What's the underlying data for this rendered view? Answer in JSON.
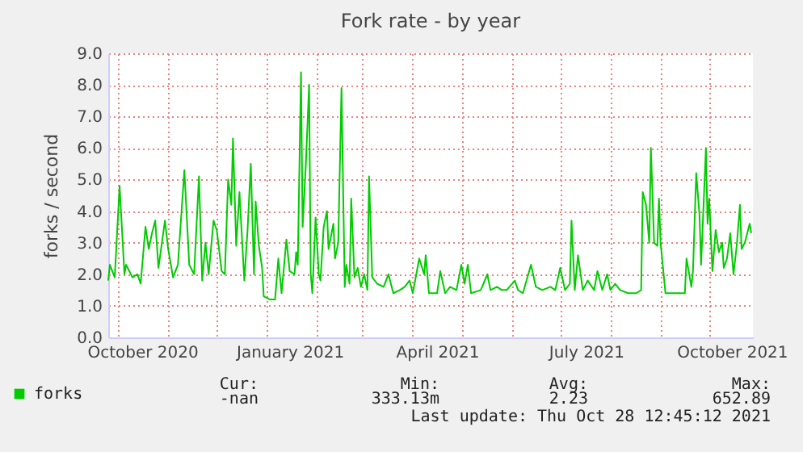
{
  "chart_data": {
    "type": "line",
    "title": "Fork rate - by year",
    "ylabel": "forks / second",
    "xlim": [
      "2020-09-25",
      "2021-10-28"
    ],
    "xticks": [
      {
        "value": "2020-10-01",
        "label": null
      },
      {
        "value": "2020-10-16",
        "label": "October 2020"
      },
      {
        "value": "2020-11-01",
        "label": null
      },
      {
        "value": "2020-12-01",
        "label": null
      },
      {
        "value": "2021-01-01",
        "label": null
      },
      {
        "value": "2021-01-15",
        "label": "January 2021"
      },
      {
        "value": "2021-02-01",
        "label": null
      },
      {
        "value": "2021-03-01",
        "label": null
      },
      {
        "value": "2021-04-01",
        "label": null
      },
      {
        "value": "2021-04-16",
        "label": "April 2021"
      },
      {
        "value": "2021-05-01",
        "label": null
      },
      {
        "value": "2021-06-01",
        "label": null
      },
      {
        "value": "2021-07-01",
        "label": null
      },
      {
        "value": "2021-07-17",
        "label": "July 2021"
      },
      {
        "value": "2021-08-01",
        "label": null
      },
      {
        "value": "2021-09-01",
        "label": null
      },
      {
        "value": "2021-10-01",
        "label": null
      },
      {
        "value": "2021-10-15",
        "label": "October 2021"
      }
    ],
    "ylim": [
      0,
      9
    ],
    "yticks": [
      {
        "value": 0,
        "label": "0.0"
      },
      {
        "value": 1,
        "label": "1.0"
      },
      {
        "value": 2,
        "label": "2.0"
      },
      {
        "value": 3,
        "label": "3.0"
      },
      {
        "value": 4,
        "label": "4.0"
      },
      {
        "value": 5,
        "label": "5.0"
      },
      {
        "value": 6,
        "label": "6.0"
      },
      {
        "value": 7,
        "label": "7.0"
      },
      {
        "value": 8,
        "label": "8.0"
      },
      {
        "value": 9,
        "label": "9.0"
      }
    ],
    "grid": true,
    "legend": "bottom left",
    "marker": "none",
    "line_style": "solid",
    "annotations": [
      "Cur:",
      "Min:",
      "Avg:",
      "Max:",
      "-nan",
      "333.13m",
      "2.23",
      "652.89",
      "Last update:  Thu Oct 28 12:45:12 2021"
    ],
    "x": [
      "2020-09-25",
      "2020-09-26",
      "2020-09-29",
      "2020-10-02",
      "2020-10-05",
      "2020-10-06",
      "2020-10-10",
      "2020-10-13",
      "2020-10-15",
      "2020-10-18",
      "2020-10-20",
      "2020-10-22",
      "2020-10-24",
      "2020-10-26",
      "2020-10-30",
      "2020-11-01",
      "2020-11-04",
      "2020-11-07",
      "2020-11-11",
      "2020-11-14",
      "2020-11-17",
      "2020-11-20",
      "2020-11-22",
      "2020-11-24",
      "2020-11-26",
      "2020-11-29",
      "2020-12-01",
      "2020-12-04",
      "2020-12-06",
      "2020-12-08",
      "2020-12-10",
      "2020-12-11",
      "2020-12-13",
      "2020-12-15",
      "2020-12-18",
      "2020-12-20",
      "2020-12-22",
      "2020-12-24",
      "2020-12-25",
      "2020-12-27",
      "2020-12-29",
      "2020-12-30",
      "2021-01-03",
      "2021-01-06",
      "2021-01-08",
      "2021-01-10",
      "2021-01-13",
      "2021-01-15",
      "2021-01-18",
      "2021-01-19",
      "2021-01-20",
      "2021-01-22",
      "2021-01-23",
      "2021-01-25",
      "2021-01-27",
      "2021-01-28",
      "2021-01-29",
      "2021-01-31",
      "2021-02-02",
      "2021-02-03",
      "2021-02-05",
      "2021-02-07",
      "2021-02-08",
      "2021-02-11",
      "2021-02-12",
      "2021-02-14",
      "2021-02-16",
      "2021-02-18",
      "2021-02-19",
      "2021-02-21",
      "2021-02-22",
      "2021-02-24",
      "2021-02-26",
      "2021-02-28",
      "2021-03-02",
      "2021-03-04",
      "2021-03-05",
      "2021-03-07",
      "2021-03-10",
      "2021-03-14",
      "2021-03-17",
      "2021-03-20",
      "2021-03-24",
      "2021-03-27",
      "2021-03-30",
      "2021-04-01",
      "2021-04-05",
      "2021-04-08",
      "2021-04-09",
      "2021-04-11",
      "2021-04-16",
      "2021-04-18",
      "2021-04-21",
      "2021-04-24",
      "2021-04-28",
      "2021-05-01",
      "2021-05-03",
      "2021-05-05",
      "2021-05-07",
      "2021-05-13",
      "2021-05-17",
      "2021-05-19",
      "2021-05-23",
      "2021-05-26",
      "2021-05-29",
      "2021-06-03",
      "2021-06-05",
      "2021-06-08",
      "2021-06-13",
      "2021-06-16",
      "2021-06-20",
      "2021-06-25",
      "2021-06-28",
      "2021-07-01",
      "2021-07-04",
      "2021-07-07",
      "2021-07-08",
      "2021-07-10",
      "2021-07-12",
      "2021-07-15",
      "2021-07-18",
      "2021-07-22",
      "2021-07-24",
      "2021-07-27",
      "2021-07-30",
      "2021-08-01",
      "2021-08-04",
      "2021-08-07",
      "2021-08-12",
      "2021-08-17",
      "2021-08-20",
      "2021-08-21",
      "2021-08-23",
      "2021-08-25",
      "2021-08-26",
      "2021-08-28",
      "2021-08-30",
      "2021-08-31",
      "2021-09-01",
      "2021-09-04",
      "2021-09-06",
      "2021-09-13",
      "2021-09-16",
      "2021-09-17",
      "2021-09-20",
      "2021-09-21",
      "2021-09-23",
      "2021-09-25",
      "2021-09-26",
      "2021-09-29",
      "2021-09-30",
      "2021-10-01",
      "2021-10-03",
      "2021-10-05",
      "2021-10-07",
      "2021-10-09",
      "2021-10-10",
      "2021-10-12",
      "2021-10-14",
      "2021-10-16",
      "2021-10-18",
      "2021-10-20",
      "2021-10-21",
      "2021-10-23",
      "2021-10-26",
      "2021-10-27"
    ],
    "series": [
      {
        "name": "forks",
        "color": "#00cc00",
        "values": [
          1.8,
          2.3,
          1.9,
          4.8,
          2.0,
          2.3,
          1.9,
          2.0,
          1.7,
          3.5,
          2.8,
          3.3,
          3.7,
          2.2,
          3.7,
          2.8,
          1.9,
          2.3,
          5.3,
          2.3,
          2.0,
          5.1,
          1.8,
          3.0,
          2.0,
          3.7,
          3.4,
          2.1,
          2.0,
          5.0,
          4.2,
          6.3,
          2.9,
          4.6,
          1.8,
          3.4,
          5.5,
          2.0,
          4.3,
          2.9,
          2.2,
          1.3,
          1.2,
          1.2,
          2.5,
          1.4,
          3.1,
          2.1,
          2.0,
          2.7,
          2.3,
          8.4,
          3.5,
          5.5,
          8.0,
          2.0,
          1.4,
          3.8,
          2.0,
          1.8,
          3.5,
          4.0,
          2.8,
          3.6,
          2.5,
          3.0,
          7.9,
          1.6,
          2.3,
          1.7,
          4.4,
          1.9,
          2.2,
          1.6,
          2.0,
          1.5,
          5.1,
          1.9,
          1.7,
          1.6,
          2.0,
          1.4,
          1.5,
          1.6,
          1.8,
          1.4,
          2.5,
          2.0,
          2.6,
          1.4,
          1.4,
          2.1,
          1.4,
          1.6,
          1.5,
          2.3,
          1.7,
          2.3,
          1.4,
          1.5,
          2.0,
          1.5,
          1.6,
          1.5,
          1.5,
          1.8,
          1.5,
          1.4,
          2.3,
          1.6,
          1.5,
          1.6,
          1.5,
          2.2,
          1.5,
          1.7,
          3.7,
          1.5,
          2.6,
          1.5,
          1.8,
          1.5,
          2.1,
          1.5,
          2.0,
          1.5,
          1.7,
          1.5,
          1.4,
          1.4,
          1.5,
          4.6,
          4.2,
          3.0,
          6.0,
          3.0,
          2.9,
          4.4,
          3.0,
          1.4,
          1.4,
          1.4,
          1.4,
          2.5,
          1.6,
          2.1,
          5.2,
          3.9,
          2.3,
          6.0,
          3.6,
          4.4,
          2.1,
          3.4,
          2.7,
          3.0,
          2.2,
          2.5,
          3.3,
          2.0,
          2.9,
          4.2,
          2.8,
          3.0,
          3.6,
          3.3
        ]
      }
    ]
  }
}
